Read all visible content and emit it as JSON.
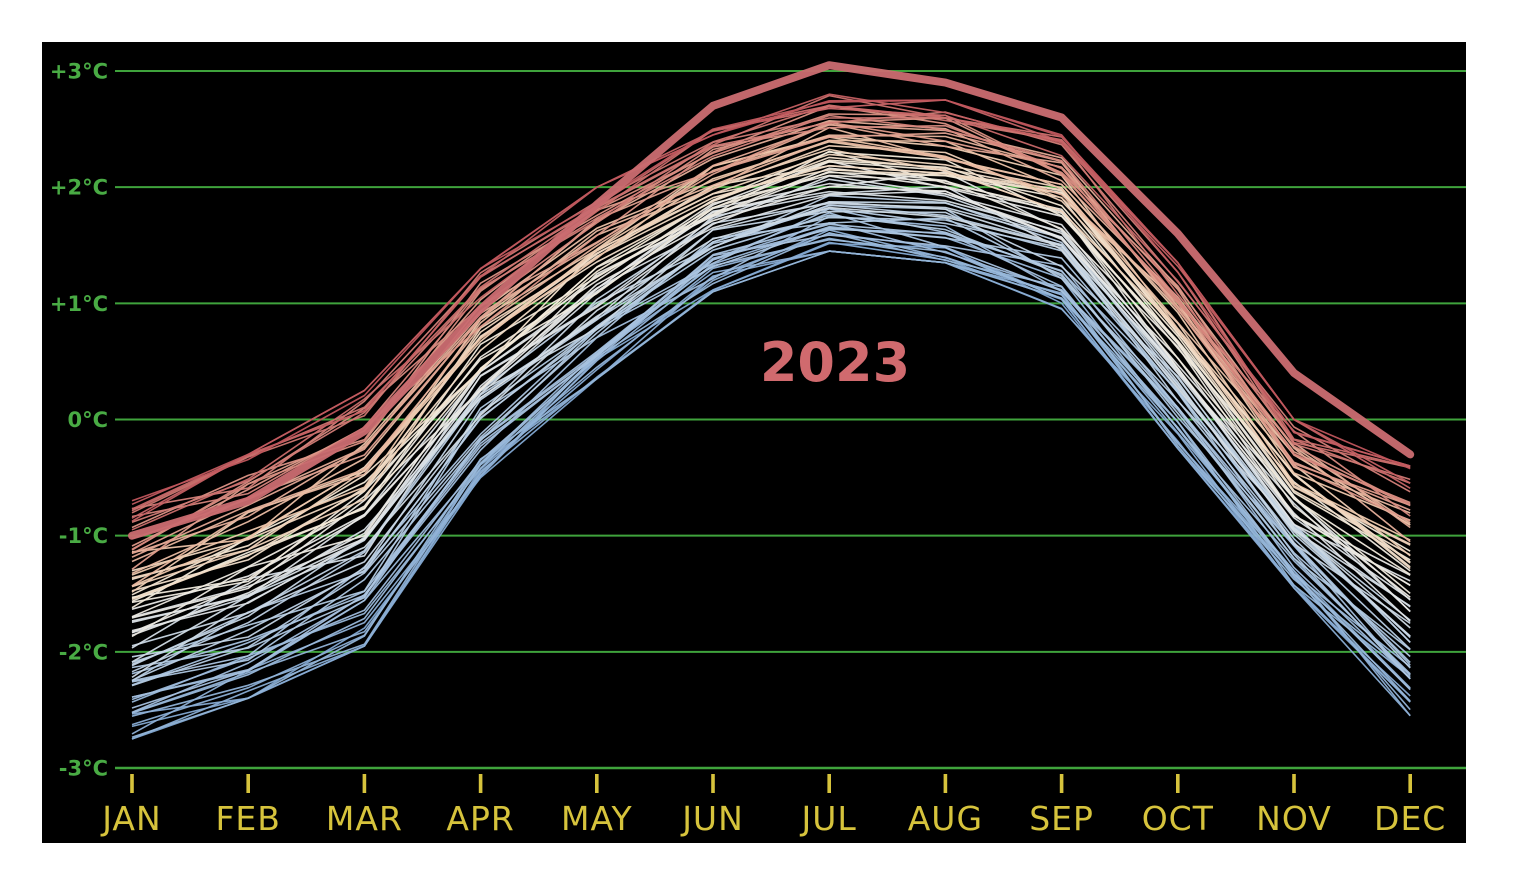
{
  "page": {
    "background_color": "#ffffff",
    "panel_color": "#000000"
  },
  "chart_data": {
    "type": "line",
    "title": "",
    "highlight_label": "2023",
    "x_categories": [
      "JAN",
      "FEB",
      "MAR",
      "APR",
      "MAY",
      "JUN",
      "JUL",
      "AUG",
      "SEP",
      "OCT",
      "NOV",
      "DEC"
    ],
    "y_axis": {
      "tick_labels": [
        "+3°C",
        "+2°C",
        "+1°C",
        "0°C",
        "-1°C",
        "-2°C",
        "-3°C"
      ],
      "tick_values": [
        3,
        2,
        1,
        0,
        -1,
        -2,
        -3
      ],
      "unit": "°C",
      "ylim": [
        -3,
        3
      ],
      "grid": true
    },
    "legend_position": "none",
    "highlight_series": {
      "name": "2023",
      "values": [
        -1.0,
        -0.7,
        -0.1,
        0.95,
        1.85,
        2.7,
        3.05,
        2.9,
        2.6,
        1.6,
        0.4,
        -0.3
      ],
      "color": "#c96b6f",
      "label_color": "#d06a6e",
      "stroke_width": 8
    },
    "background_ensemble": {
      "description": "Bundle of thin monthly lines for past years, colored cool-to-warm from bottom (light blue) to top (red), forming a seasonal arc that peaks in July",
      "line_count": 83,
      "envelope_min": [
        -2.75,
        -2.4,
        -1.95,
        -0.5,
        0.35,
        1.1,
        1.45,
        1.35,
        0.95,
        -0.25,
        -1.45,
        -2.55
      ],
      "envelope_max": [
        -0.7,
        -0.3,
        0.25,
        1.3,
        2.0,
        2.5,
        2.8,
        2.75,
        2.45,
        1.35,
        0.0,
        -0.4
      ],
      "colormap_stops": [
        [
          0.0,
          "#82a8d2"
        ],
        [
          0.28,
          "#b7cde4"
        ],
        [
          0.48,
          "#e9e9e7"
        ],
        [
          0.58,
          "#f3ead9"
        ],
        [
          0.7,
          "#eec9ad"
        ],
        [
          0.84,
          "#dd9486"
        ],
        [
          1.0,
          "#bf555c"
        ]
      ],
      "thin_stroke_width": 1.6
    },
    "colors": {
      "gridline": "#3fa33c",
      "y_label": "#49ab44",
      "x_label": "#d6c33c",
      "tick_mark": "#d6c33c"
    }
  }
}
